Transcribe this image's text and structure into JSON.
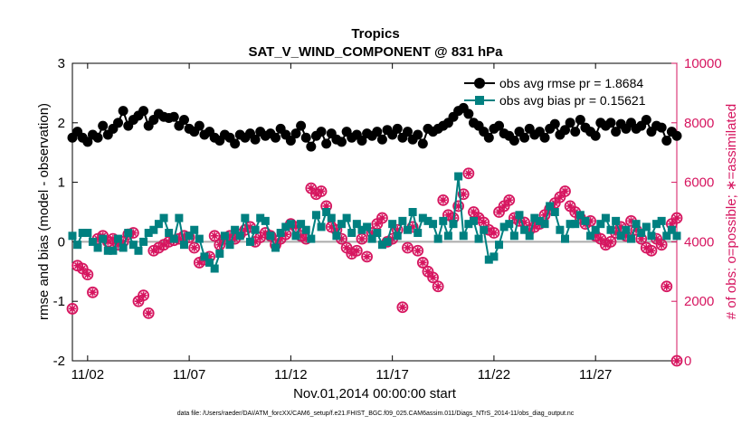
{
  "chart_data": {
    "type": "line",
    "title": "Tropics",
    "subtitle": "SAT_V_WIND_COMPONENT @ 831 hPa",
    "xlabel": "Nov.01,2014 00:00:00 start",
    "ylabel": "rmse and bias (model - observation)",
    "ylabel_right": "# of obs: o=possible; ∗=assimilated",
    "footnote": "data file: /Users/raeder/DAI/ATM_forcXX/CAM6_setup/f.e21.FHIST_BGC.f09_025.CAM6assim.011/Diags_NTrS_2014-11/obs_diag_output.nc",
    "x_ticks": [
      "11/02",
      "11/07",
      "11/12",
      "11/17",
      "11/22",
      "11/27"
    ],
    "x_tick_days": [
      2,
      7,
      12,
      17,
      22,
      27
    ],
    "xlim": [
      1.25,
      31.0
    ],
    "ylim": [
      -2,
      3
    ],
    "y_ticks": [
      "-2",
      "-1",
      "0",
      "1",
      "2",
      "3"
    ],
    "ylim_right": [
      0,
      10000
    ],
    "y_ticks_right": [
      "0",
      "2000",
      "4000",
      "6000",
      "8000",
      "10000"
    ],
    "legend_position": "top-right",
    "colors": {
      "rmse": "#000000",
      "bias": "#008080",
      "obs": "#d6155f",
      "zero_line": "#aaaaaa"
    },
    "series": [
      {
        "name": "obs avg rmse pr = 1.8684",
        "marker": "circle",
        "x": [
          1.25,
          1.5,
          1.75,
          2.0,
          2.25,
          2.5,
          2.75,
          3.0,
          3.25,
          3.5,
          3.75,
          4.0,
          4.25,
          4.5,
          4.75,
          5.0,
          5.25,
          5.5,
          5.75,
          6.0,
          6.25,
          6.5,
          6.75,
          7.0,
          7.25,
          7.5,
          7.75,
          8.0,
          8.25,
          8.5,
          8.75,
          9.0,
          9.25,
          9.5,
          9.75,
          10.0,
          10.25,
          10.5,
          10.75,
          11.0,
          11.25,
          11.5,
          11.75,
          12.0,
          12.25,
          12.5,
          12.75,
          13.0,
          13.25,
          13.5,
          13.75,
          14.0,
          14.25,
          14.5,
          14.75,
          15.0,
          15.25,
          15.5,
          15.75,
          16.0,
          16.25,
          16.5,
          16.75,
          17.0,
          17.25,
          17.5,
          17.75,
          18.0,
          18.25,
          18.5,
          18.75,
          19.0,
          19.25,
          19.5,
          19.75,
          20.0,
          20.25,
          20.5,
          20.75,
          21.0,
          21.25,
          21.5,
          21.75,
          22.0,
          22.25,
          22.5,
          22.75,
          23.0,
          23.25,
          23.5,
          23.75,
          24.0,
          24.25,
          24.5,
          24.75,
          25.0,
          25.25,
          25.5,
          25.75,
          26.0,
          26.25,
          26.5,
          26.75,
          27.0,
          27.25,
          27.5,
          27.75,
          28.0,
          28.25,
          28.5,
          28.75,
          29.0,
          29.25,
          29.5,
          29.75,
          30.0,
          30.25,
          30.5,
          30.75,
          31.0
        ],
        "y": [
          1.75,
          1.85,
          1.75,
          1.68,
          1.8,
          1.75,
          1.95,
          1.8,
          1.9,
          2.0,
          2.2,
          1.95,
          2.05,
          2.12,
          2.2,
          1.95,
          2.05,
          2.15,
          2.1,
          2.08,
          2.1,
          1.95,
          2.05,
          1.9,
          1.85,
          1.95,
          1.8,
          1.85,
          1.75,
          1.7,
          1.8,
          1.75,
          1.65,
          1.8,
          1.75,
          1.82,
          1.72,
          1.85,
          1.78,
          1.82,
          1.75,
          1.9,
          1.8,
          1.7,
          1.82,
          1.95,
          1.75,
          1.6,
          1.78,
          1.85,
          1.65,
          1.82,
          1.72,
          1.68,
          1.85,
          1.75,
          1.8,
          1.7,
          1.82,
          1.78,
          1.85,
          1.72,
          1.88,
          1.8,
          1.9,
          1.75,
          1.85,
          1.72,
          1.8,
          1.65,
          1.9,
          1.85,
          1.9,
          1.95,
          2.0,
          2.1,
          2.2,
          2.25,
          2.15,
          2.0,
          1.95,
          1.85,
          1.75,
          1.9,
          1.95,
          1.82,
          1.78,
          1.7,
          1.85,
          1.75,
          1.9,
          1.8,
          1.85,
          1.75,
          1.9,
          1.98,
          1.8,
          1.88,
          2.0,
          1.85,
          2.05,
          1.92,
          1.85,
          1.78,
          2.0,
          1.95,
          2.0,
          1.85,
          1.98,
          1.9,
          2.0,
          1.9,
          1.95,
          2.05,
          1.85,
          1.95,
          1.92,
          1.7,
          1.85,
          1.78
        ]
      },
      {
        "name": "obs avg bias pr = 0.15621",
        "marker": "square",
        "x": [
          1.25,
          1.5,
          1.75,
          2.0,
          2.25,
          2.5,
          2.75,
          3.0,
          3.25,
          3.5,
          3.75,
          4.0,
          4.25,
          4.5,
          4.75,
          5.0,
          5.25,
          5.5,
          5.75,
          6.0,
          6.25,
          6.5,
          6.75,
          7.0,
          7.25,
          7.5,
          7.75,
          8.0,
          8.25,
          8.5,
          8.75,
          9.0,
          9.25,
          9.5,
          9.75,
          10.0,
          10.25,
          10.5,
          10.75,
          11.0,
          11.25,
          11.5,
          11.75,
          12.0,
          12.25,
          12.5,
          12.75,
          13.0,
          13.25,
          13.5,
          13.75,
          14.0,
          14.25,
          14.5,
          14.75,
          15.0,
          15.25,
          15.5,
          15.75,
          16.0,
          16.25,
          16.5,
          16.75,
          17.0,
          17.25,
          17.5,
          17.75,
          18.0,
          18.25,
          18.5,
          18.75,
          19.0,
          19.25,
          19.5,
          19.75,
          20.0,
          20.25,
          20.5,
          20.75,
          21.0,
          21.25,
          21.5,
          21.75,
          22.0,
          22.25,
          22.5,
          22.75,
          23.0,
          23.25,
          23.5,
          23.75,
          24.0,
          24.25,
          24.5,
          24.75,
          25.0,
          25.25,
          25.5,
          25.75,
          26.0,
          26.25,
          26.5,
          26.75,
          27.0,
          27.25,
          27.5,
          27.75,
          28.0,
          28.25,
          28.5,
          28.75,
          29.0,
          29.25,
          29.5,
          29.75,
          30.0,
          30.25,
          30.5,
          30.75,
          31.0
        ],
        "y": [
          0.1,
          -0.05,
          0.15,
          0.15,
          0.0,
          -0.1,
          0.05,
          -0.15,
          -0.15,
          0.05,
          -0.1,
          0.15,
          -0.05,
          -0.15,
          0.0,
          0.15,
          0.2,
          0.3,
          0.4,
          0.15,
          0.05,
          0.4,
          -0.05,
          0.1,
          0.2,
          0.05,
          -0.25,
          -0.35,
          -0.45,
          -0.2,
          0.1,
          -0.05,
          0.2,
          0.1,
          0.4,
          0.0,
          0.2,
          0.4,
          0.35,
          0.1,
          -0.1,
          0.15,
          0.25,
          0.3,
          0.1,
          0.3,
          0.2,
          0.05,
          0.45,
          0.25,
          0.5,
          0.4,
          0.1,
          0.3,
          0.4,
          0.15,
          0.3,
          0.2,
          0.25,
          0.05,
          0.15,
          -0.05,
          0.0,
          0.3,
          0.1,
          0.35,
          0.2,
          0.5,
          0.15,
          0.4,
          0.35,
          0.3,
          0.05,
          0.35,
          0.1,
          0.3,
          1.1,
          0.1,
          0.3,
          0.35,
          0.05,
          0.2,
          -0.3,
          -0.25,
          -0.05,
          0.25,
          0.3,
          0.1,
          0.45,
          0.2,
          0.1,
          0.4,
          0.35,
          0.3,
          0.6,
          0.5,
          0.2,
          0.05,
          0.3,
          0.3,
          0.45,
          0.35,
          0.1,
          0.2,
          0.3,
          0.4,
          0.2,
          0.35,
          0.1,
          0.2,
          0.05,
          0.3,
          0.15,
          0.25,
          0.1,
          0.3,
          0.35,
          0.1,
          0.2,
          0.1
        ]
      },
      {
        "name": "obs possible",
        "marker": "circle-open",
        "axis": "right",
        "x": [
          1.25,
          1.5,
          1.75,
          2.0,
          2.25,
          2.5,
          2.75,
          3.0,
          3.25,
          3.5,
          3.75,
          4.0,
          4.25,
          4.5,
          4.75,
          5.0,
          5.25,
          5.5,
          5.75,
          6.0,
          6.25,
          6.5,
          6.75,
          7.0,
          7.25,
          7.5,
          7.75,
          8.0,
          8.25,
          8.5,
          8.75,
          9.0,
          9.25,
          9.5,
          9.75,
          10.0,
          10.25,
          10.5,
          10.75,
          11.0,
          11.25,
          11.5,
          11.75,
          12.0,
          12.25,
          12.5,
          12.75,
          13.0,
          13.25,
          13.5,
          13.75,
          14.0,
          14.25,
          14.5,
          14.75,
          15.0,
          15.25,
          15.5,
          15.75,
          16.0,
          16.25,
          16.5,
          16.75,
          17.0,
          17.25,
          17.5,
          17.75,
          18.0,
          18.25,
          18.5,
          18.75,
          19.0,
          19.25,
          19.5,
          19.75,
          20.0,
          20.25,
          20.5,
          20.75,
          21.0,
          21.25,
          21.5,
          21.75,
          22.0,
          22.25,
          22.5,
          22.75,
          23.0,
          23.25,
          23.5,
          23.75,
          24.0,
          24.25,
          24.5,
          24.75,
          25.0,
          25.25,
          25.5,
          25.75,
          26.0,
          26.25,
          26.5,
          26.75,
          27.0,
          27.25,
          27.5,
          27.75,
          28.0,
          28.25,
          28.5,
          28.75,
          29.0,
          29.25,
          29.5,
          29.75,
          30.0,
          30.25,
          30.5,
          30.75,
          31.0
        ],
        "y": [
          1750,
          3200,
          3100,
          2900,
          2300,
          4100,
          4200,
          4000,
          4100,
          3900,
          4000,
          4250,
          4300,
          2000,
          2200,
          1600,
          3700,
          3800,
          3900,
          4000,
          4050,
          4100,
          4200,
          4150,
          3800,
          3300,
          3400,
          3500,
          4200,
          3900,
          4100,
          4200,
          4100,
          4250,
          4400,
          4500,
          4000,
          4150,
          4300,
          4200,
          3900,
          4100,
          4250,
          4600,
          4500,
          4200,
          4100,
          5800,
          5600,
          5700,
          5200,
          4500,
          4400,
          4100,
          3800,
          3600,
          3700,
          4100,
          3500,
          4300,
          4600,
          4800,
          4000,
          4100,
          4400,
          1800,
          3800,
          4500,
          3700,
          3300,
          3000,
          2800,
          2500,
          5400,
          4900,
          4800,
          5200,
          5600,
          6300,
          5000,
          4800,
          4650,
          4400,
          4300,
          5000,
          5200,
          5400,
          4800,
          4700,
          4650,
          4400,
          4500,
          4600,
          4900,
          5100,
          5300,
          5500,
          5700,
          5200,
          5000,
          4800,
          4600,
          4700,
          4200,
          4100,
          3900,
          4000,
          4300,
          4500,
          4200,
          4700,
          4400,
          4100,
          3800,
          3700,
          4100,
          3900,
          2500,
          4600,
          4800
        ]
      },
      {
        "name": "obs assimilated",
        "marker": "star",
        "axis": "right",
        "x": [
          1.25,
          1.5,
          1.75,
          2.0,
          2.25,
          2.5,
          2.75,
          3.0,
          3.25,
          3.5,
          3.75,
          4.0,
          4.25,
          4.5,
          4.75,
          5.0,
          5.25,
          5.5,
          5.75,
          6.0,
          6.25,
          6.5,
          6.75,
          7.0,
          7.25,
          7.5,
          7.75,
          8.0,
          8.25,
          8.5,
          8.75,
          9.0,
          9.25,
          9.5,
          9.75,
          10.0,
          10.25,
          10.5,
          10.75,
          11.0,
          11.25,
          11.5,
          11.75,
          12.0,
          12.25,
          12.5,
          12.75,
          13.0,
          13.25,
          13.5,
          13.75,
          14.0,
          14.25,
          14.5,
          14.75,
          15.0,
          15.25,
          15.5,
          15.75,
          16.0,
          16.25,
          16.5,
          16.75,
          17.0,
          17.25,
          17.5,
          17.75,
          18.0,
          18.25,
          18.5,
          18.75,
          19.0,
          19.25,
          19.5,
          19.75,
          20.0,
          20.25,
          20.5,
          20.75,
          21.0,
          21.25,
          21.5,
          21.75,
          22.0,
          22.25,
          22.5,
          22.75,
          23.0,
          23.25,
          23.5,
          23.75,
          24.0,
          24.25,
          24.5,
          24.75,
          25.0,
          25.25,
          25.5,
          25.75,
          26.0,
          26.25,
          26.5,
          26.75,
          27.0,
          27.25,
          27.5,
          27.75,
          28.0,
          28.25,
          28.5,
          28.75,
          29.0,
          29.25,
          29.5,
          29.75,
          30.0,
          30.25,
          30.5,
          30.75,
          31.0
        ],
        "y": [
          1750,
          3200,
          3100,
          2900,
          2300,
          4100,
          4200,
          4000,
          4100,
          3900,
          4000,
          4250,
          4300,
          2000,
          2200,
          1600,
          3700,
          3800,
          3900,
          4000,
          4050,
          4100,
          4200,
          4150,
          3800,
          3300,
          3400,
          3500,
          4200,
          3900,
          4100,
          4200,
          4100,
          4250,
          4400,
          4500,
          4000,
          4150,
          4300,
          4200,
          3900,
          4100,
          4250,
          4600,
          4500,
          4200,
          4100,
          5800,
          5600,
          5700,
          5200,
          4500,
          4400,
          4100,
          3800,
          3600,
          3700,
          4100,
          3500,
          4300,
          4600,
          4800,
          4000,
          4100,
          4400,
          1800,
          3800,
          4500,
          3700,
          3300,
          3000,
          2800,
          2500,
          5400,
          4900,
          4800,
          5200,
          5600,
          6300,
          5000,
          4800,
          4650,
          4400,
          4300,
          5000,
          5200,
          5400,
          4800,
          4700,
          4650,
          4400,
          4500,
          4600,
          4900,
          5100,
          5300,
          5500,
          5700,
          5200,
          5000,
          4800,
          4600,
          4700,
          4200,
          4100,
          3900,
          4000,
          4300,
          4500,
          4200,
          4700,
          4400,
          4100,
          3800,
          3700,
          4100,
          3900,
          2500,
          4600,
          4800
        ]
      }
    ],
    "extra_points": [
      {
        "series": "obs possible",
        "x": 31.0,
        "y": 0
      },
      {
        "series": "obs assimilated",
        "x": 31.0,
        "y": 0
      }
    ],
    "grid": false
  }
}
